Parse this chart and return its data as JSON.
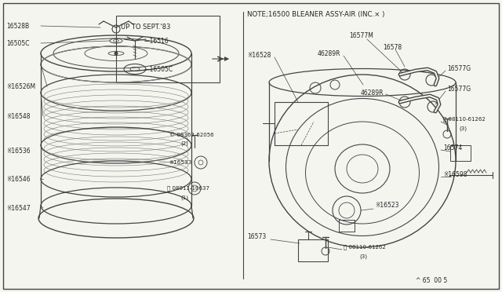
{
  "bg_color": "#f5f5f0",
  "line_color": "#444444",
  "text_color": "#222222",
  "note_text": "NOTE;16500 BLEANER ASSY-AIR (INC.× )",
  "upto_text": "UP TO SEPT.'83",
  "footer_text": "^ 65  00 5"
}
